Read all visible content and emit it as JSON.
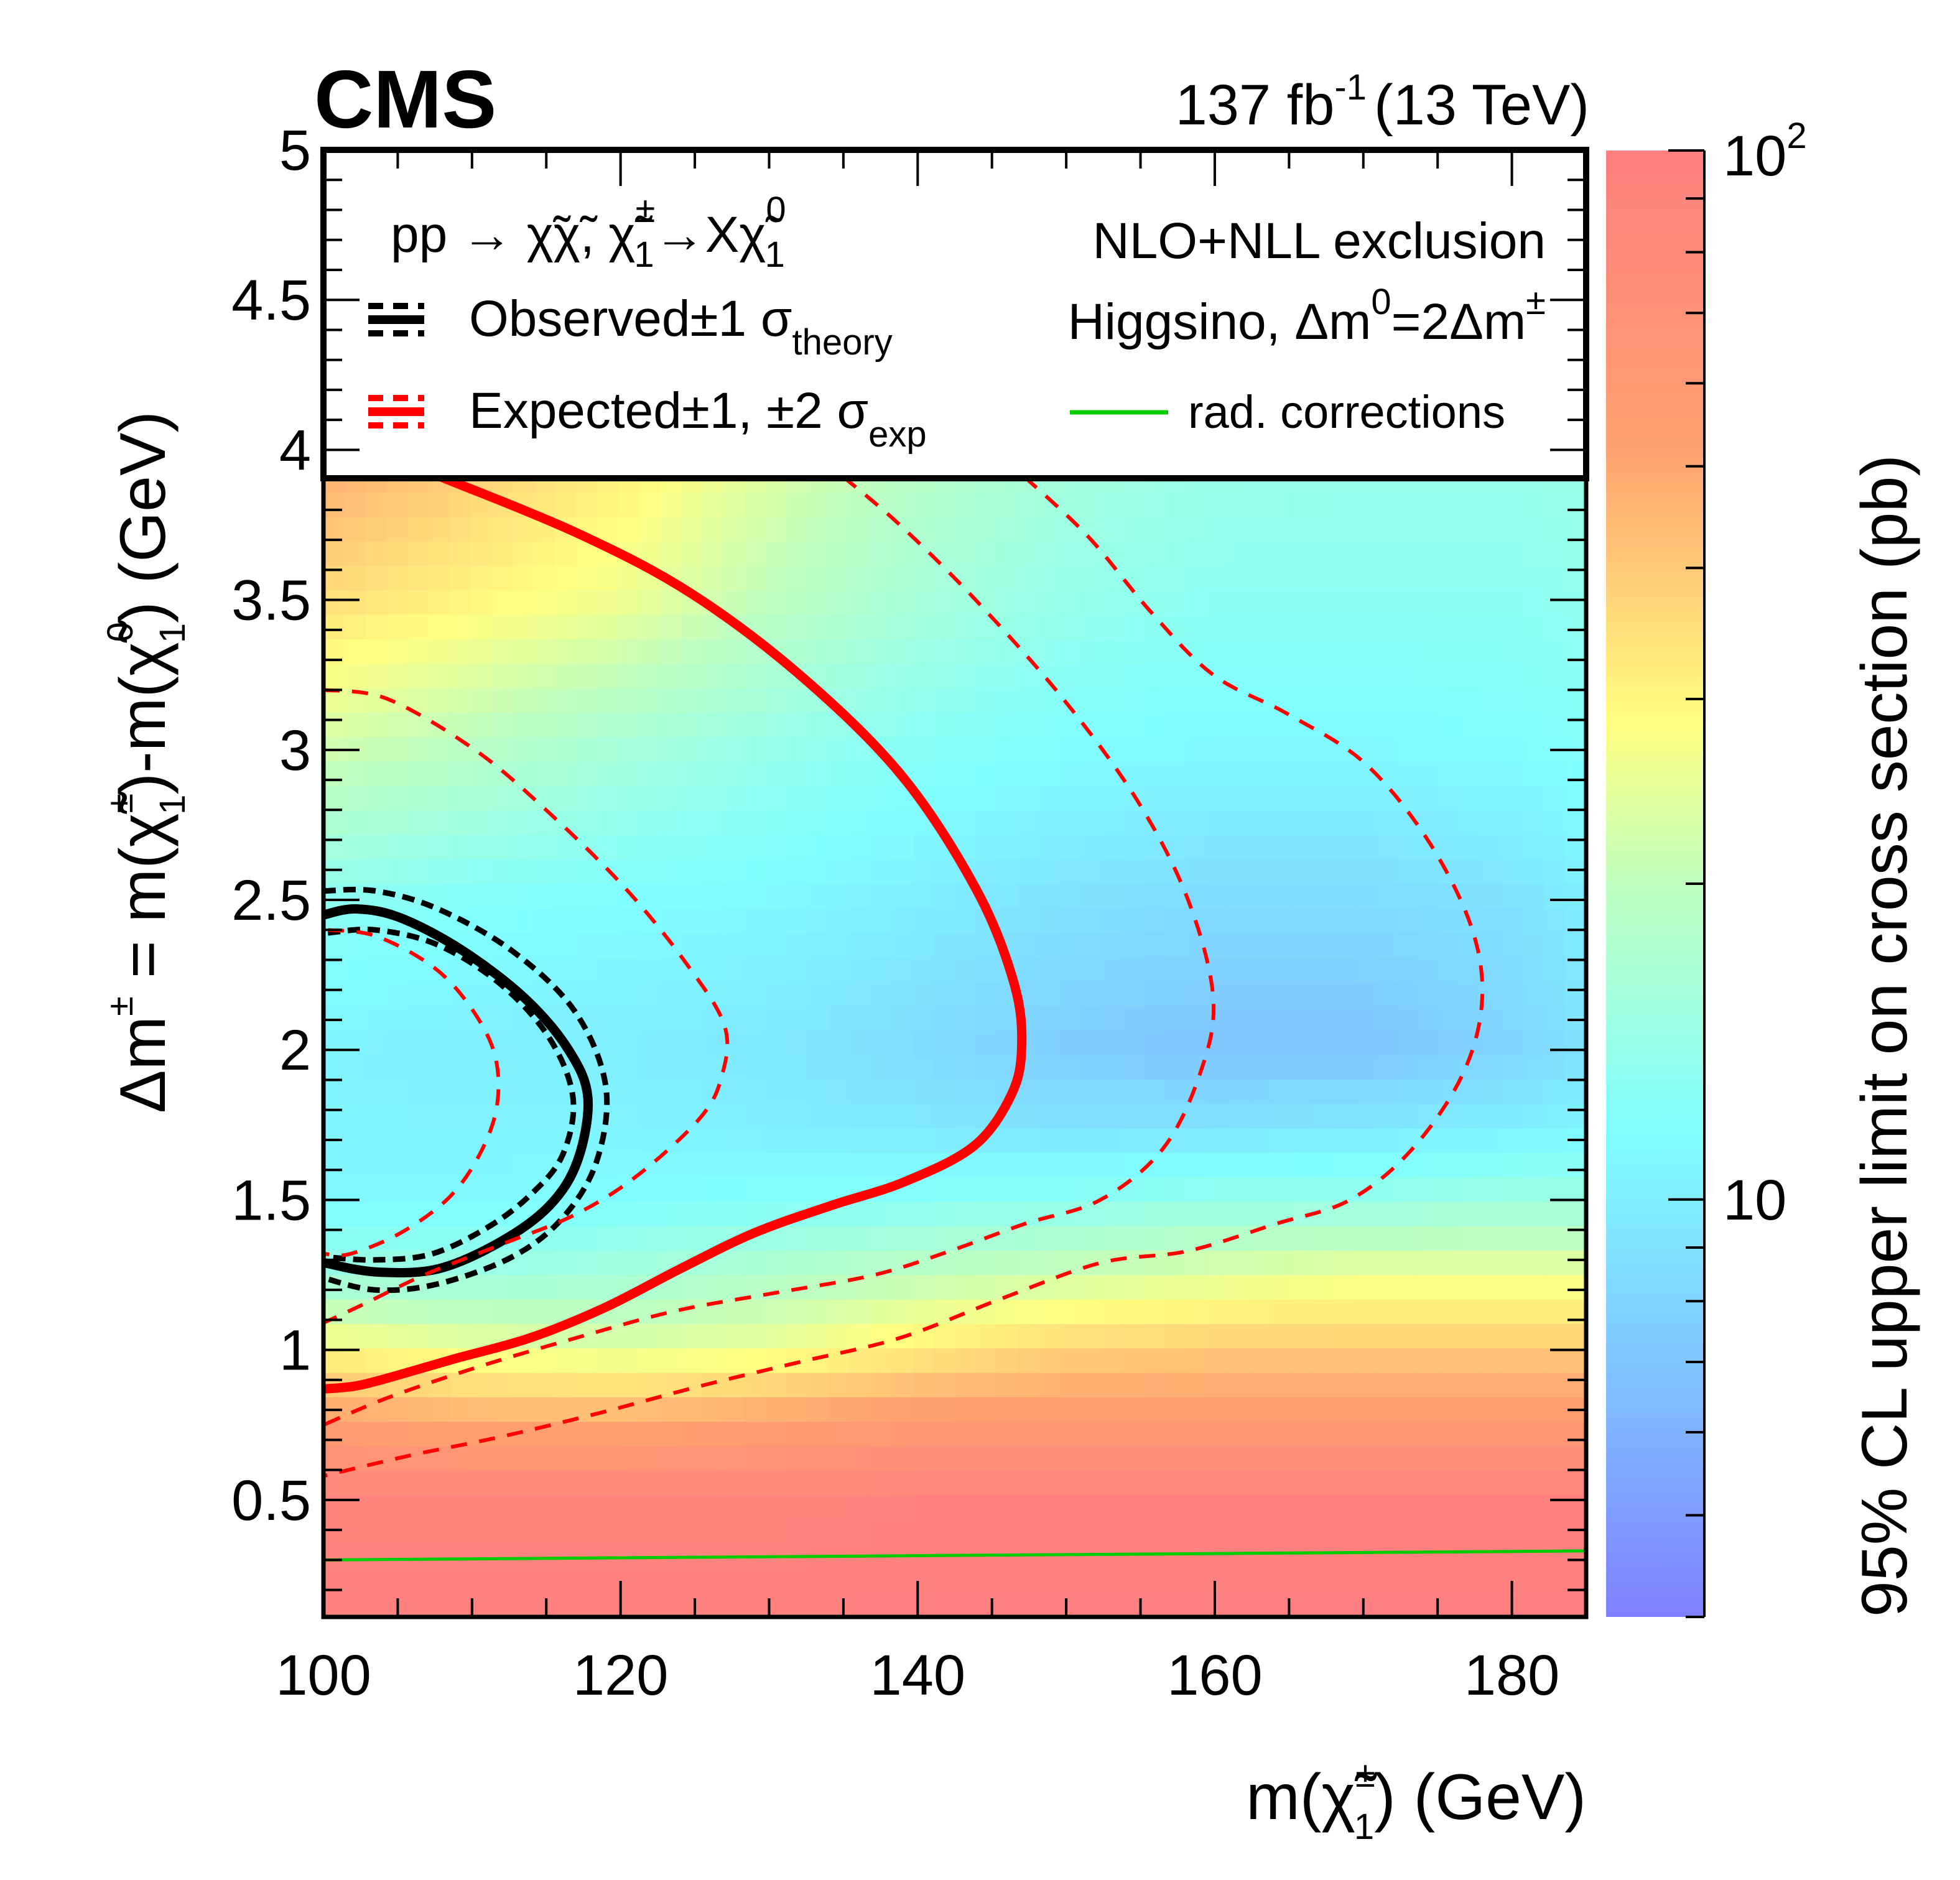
{
  "header": {
    "experiment": "CMS",
    "luminosity": "137 fb",
    "luminosity_exp": "-1",
    "energy": "(13 TeV)"
  },
  "legend": {
    "process_prefix": "pp → χ̃χ̃, χ̃",
    "process_sup1": "±",
    "process_sub1": "1",
    "process_mid": "→Xχ̃",
    "process_sup2": "0",
    "process_sub2": "1",
    "observed_label": "Observed±1 σ",
    "observed_sub": "theory",
    "expected_label": "Expected±1, ±2 σ",
    "expected_sub": "exp",
    "exclusion_title": "NLO+NLL exclusion",
    "model_prefix": "Higgsino, Δm",
    "model_sup1": "0",
    "model_mid": "=2Δm",
    "model_sup2": "±",
    "rad_label": "rad. corrections"
  },
  "colors": {
    "observed": "#000000",
    "expected": "#ff0000",
    "rad_corrections": "#00cc00",
    "colorscale": [
      "#8080ff",
      "#80d0ff",
      "#80ffff",
      "#c0ffc0",
      "#ffff80",
      "#ffa070",
      "#ff8080"
    ]
  },
  "chart_data": {
    "type": "heatmap",
    "title": "",
    "xlabel": "m(χ̃±1) (GeV)",
    "xlabel_parts": {
      "pre": "m(χ̃",
      "sup": "±",
      "sub": "1",
      "post": ") (GeV)"
    },
    "ylabel": "Δm± = m(χ̃±1)-m(χ̃01) (GeV)",
    "ylabel_parts": {
      "p1": "Δm",
      "s1": "±",
      "p2": " = m(χ̃",
      "s2": "±",
      "b2": "1",
      "p3": ")-m(χ̃",
      "s3": "0",
      "b3": "1",
      "p4": ")  (GeV)"
    },
    "zlabel": "95% CL upper limit on cross section (pb)",
    "xlim": [
      100,
      185
    ],
    "ylim": [
      0.11,
      5
    ],
    "zlim": [
      4,
      100
    ],
    "zscale": "log",
    "grid": false,
    "legend_position": "top",
    "x_ticks": [
      "100",
      "120",
      "140",
      "160",
      "180"
    ],
    "x_tick_values": [
      100,
      120,
      140,
      160,
      180
    ],
    "y_ticks": [
      "0.5",
      "1",
      "1.5",
      "2",
      "2.5",
      "3",
      "3.5",
      "4",
      "4.5",
      "5"
    ],
    "y_tick_values": [
      0.5,
      1,
      1.5,
      2,
      2.5,
      3,
      3.5,
      4,
      4.5,
      5
    ],
    "z_ticks": [
      {
        "value": 10,
        "label": "10"
      },
      {
        "value": 100,
        "label": "10",
        "exp": "2"
      }
    ],
    "grid_x": [
      100,
      110,
      120,
      130,
      140,
      150,
      160,
      170,
      180,
      185
    ],
    "grid_y": [
      0.1,
      0.5,
      0.75,
      1.0,
      1.25,
      1.5,
      1.75,
      2.0,
      2.5,
      3.0,
      3.5,
      4.0,
      5.0
    ],
    "z": [
      [
        100,
        100,
        100,
        100,
        100,
        100,
        100,
        100,
        100,
        100
      ],
      [
        90,
        90,
        90,
        90,
        95,
        95,
        95,
        95,
        95,
        95
      ],
      [
        55,
        50,
        50,
        55,
        60,
        60,
        60,
        60,
        60,
        60
      ],
      [
        30,
        26,
        24,
        26,
        32,
        38,
        40,
        40,
        40,
        40
      ],
      [
        15,
        15,
        16,
        18,
        20,
        22,
        24,
        26,
        26,
        26
      ],
      [
        11,
        11,
        11.5,
        12,
        12.5,
        13,
        14,
        14,
        15,
        15
      ],
      [
        10.5,
        10.5,
        10.5,
        10,
        9.5,
        9,
        9,
        9.5,
        10,
        10.5
      ],
      [
        10.5,
        10,
        10,
        9.5,
        8.5,
        7.5,
        7,
        7,
        8,
        9
      ],
      [
        13,
        12,
        11.5,
        11,
        10,
        9,
        8.5,
        8.5,
        9,
        10
      ],
      [
        22,
        19,
        16,
        14,
        12.5,
        11.5,
        11,
        11,
        11.5,
        12
      ],
      [
        35,
        30,
        26,
        20,
        16,
        14,
        13,
        13,
        13,
        13.5
      ],
      [
        50,
        40,
        32,
        24,
        19,
        16,
        14.5,
        14,
        14,
        14.5
      ],
      [
        60,
        50,
        40,
        30,
        24,
        20,
        18,
        17,
        17,
        17
      ]
    ],
    "contours": [
      {
        "name": "Observed",
        "style": "solid",
        "color": "#000000",
        "points": [
          [
            100,
            2.45
          ],
          [
            102.2,
            2.47
          ],
          [
            105.2,
            2.44
          ],
          [
            109.4,
            2.33
          ],
          [
            113.6,
            2.17
          ],
          [
            116.5,
            2.0
          ],
          [
            117.8,
            1.84
          ],
          [
            117.1,
            1.63
          ],
          [
            115.2,
            1.48
          ],
          [
            111.9,
            1.36
          ],
          [
            107.7,
            1.27
          ],
          [
            103.5,
            1.26
          ],
          [
            100.1,
            1.29
          ]
        ]
      },
      {
        "name": "Observed +1σ theory",
        "style": "dashed",
        "color": "#000000",
        "points": [
          [
            100,
            2.53
          ],
          [
            103.5,
            2.53
          ],
          [
            107.7,
            2.47
          ],
          [
            112.7,
            2.33
          ],
          [
            116.9,
            2.13
          ],
          [
            119.0,
            1.88
          ],
          [
            118.4,
            1.63
          ],
          [
            116.1,
            1.44
          ],
          [
            112.7,
            1.31
          ],
          [
            107.7,
            1.22
          ],
          [
            103.5,
            1.2
          ],
          [
            100,
            1.24
          ]
        ]
      },
      {
        "name": "Observed -1σ theory",
        "style": "dashed",
        "color": "#000000",
        "points": [
          [
            100.3,
            2.39
          ],
          [
            103.5,
            2.4
          ],
          [
            107.7,
            2.35
          ],
          [
            111.9,
            2.22
          ],
          [
            115.2,
            2.04
          ],
          [
            116.8,
            1.84
          ],
          [
            116.1,
            1.65
          ],
          [
            114.0,
            1.52
          ],
          [
            111.1,
            1.41
          ],
          [
            107.3,
            1.32
          ],
          [
            103.5,
            1.3
          ],
          [
            100.1,
            1.31
          ]
        ]
      },
      {
        "name": "Expected",
        "style": "solid",
        "color": "#ff0000",
        "points": [
          [
            107.9,
            3.91
          ],
          [
            117.2,
            3.72
          ],
          [
            124.8,
            3.52
          ],
          [
            132.3,
            3.24
          ],
          [
            139.0,
            2.91
          ],
          [
            144.0,
            2.53
          ],
          [
            146.5,
            2.22
          ],
          [
            147.0,
            2.01
          ],
          [
            146.3,
            1.85
          ],
          [
            143.8,
            1.68
          ],
          [
            139.1,
            1.56
          ],
          [
            134.1,
            1.48
          ],
          [
            129.0,
            1.39
          ],
          [
            124.0,
            1.27
          ],
          [
            118.9,
            1.14
          ],
          [
            113.9,
            1.04
          ],
          [
            108.8,
            0.97
          ],
          [
            104.6,
            0.91
          ],
          [
            102.2,
            0.88
          ],
          [
            100.0,
            0.87
          ]
        ]
      },
      {
        "name": "Expected -2σ exp",
        "style": "dashed",
        "color": "#ff0000",
        "points": [
          [
            100.3,
            2.4
          ],
          [
            103.5,
            2.38
          ],
          [
            107.3,
            2.28
          ],
          [
            109.8,
            2.15
          ],
          [
            111.5,
            1.99
          ],
          [
            111.7,
            1.82
          ],
          [
            110.6,
            1.66
          ],
          [
            108.5,
            1.51
          ],
          [
            105.2,
            1.39
          ],
          [
            101.8,
            1.32
          ],
          [
            100.1,
            1.32
          ]
        ]
      },
      {
        "name": "Expected -1σ exp",
        "style": "dashed",
        "color": "#ff0000",
        "points": [
          [
            100,
            3.2
          ],
          [
            104.3,
            3.17
          ],
          [
            110.2,
            3.0
          ],
          [
            115.2,
            2.79
          ],
          [
            120.3,
            2.54
          ],
          [
            124.4,
            2.29
          ],
          [
            127.0,
            2.08
          ],
          [
            126.8,
            1.91
          ],
          [
            125.3,
            1.77
          ],
          [
            121.1,
            1.58
          ],
          [
            116.9,
            1.45
          ],
          [
            111.9,
            1.35
          ],
          [
            106.8,
            1.25
          ],
          [
            102.6,
            1.15
          ],
          [
            100,
            1.09
          ]
        ]
      },
      {
        "name": "Expected +1σ exp",
        "style": "dashed",
        "color": "#ff0000",
        "points": [
          [
            135.0,
            3.91
          ],
          [
            138.8,
            3.75
          ],
          [
            143.9,
            3.5
          ],
          [
            149.8,
            3.17
          ],
          [
            154.8,
            2.83
          ],
          [
            158.2,
            2.5
          ],
          [
            159.9,
            2.17
          ],
          [
            159.0,
            1.92
          ],
          [
            156.5,
            1.67
          ],
          [
            152.3,
            1.5
          ],
          [
            147.2,
            1.42
          ],
          [
            142.2,
            1.33
          ],
          [
            137.1,
            1.25
          ],
          [
            130.4,
            1.19
          ],
          [
            123.7,
            1.13
          ],
          [
            117.0,
            1.04
          ],
          [
            110.2,
            0.94
          ],
          [
            104.3,
            0.84
          ],
          [
            100.0,
            0.75
          ]
        ]
      },
      {
        "name": "Expected +2σ exp",
        "style": "dashed",
        "color": "#ff0000",
        "points": [
          [
            147.2,
            3.91
          ],
          [
            151.5,
            3.71
          ],
          [
            155.7,
            3.46
          ],
          [
            159.9,
            3.25
          ],
          [
            164.9,
            3.12
          ],
          [
            170.0,
            2.96
          ],
          [
            174.2,
            2.71
          ],
          [
            177.2,
            2.42
          ],
          [
            178.0,
            2.17
          ],
          [
            176.7,
            1.92
          ],
          [
            173.3,
            1.67
          ],
          [
            169.1,
            1.5
          ],
          [
            164.1,
            1.42
          ],
          [
            158.2,
            1.33
          ],
          [
            152.3,
            1.29
          ],
          [
            145.6,
            1.17
          ],
          [
            138.8,
            1.04
          ],
          [
            132.1,
            0.96
          ],
          [
            125.4,
            0.88
          ],
          [
            118.6,
            0.79
          ],
          [
            111.9,
            0.71
          ],
          [
            106.0,
            0.65
          ],
          [
            100.0,
            0.58
          ]
        ]
      },
      {
        "name": "rad. corrections",
        "style": "solid",
        "color": "#00cc00",
        "points": [
          [
            100,
            0.3
          ],
          [
            185,
            0.33
          ]
        ]
      }
    ]
  }
}
